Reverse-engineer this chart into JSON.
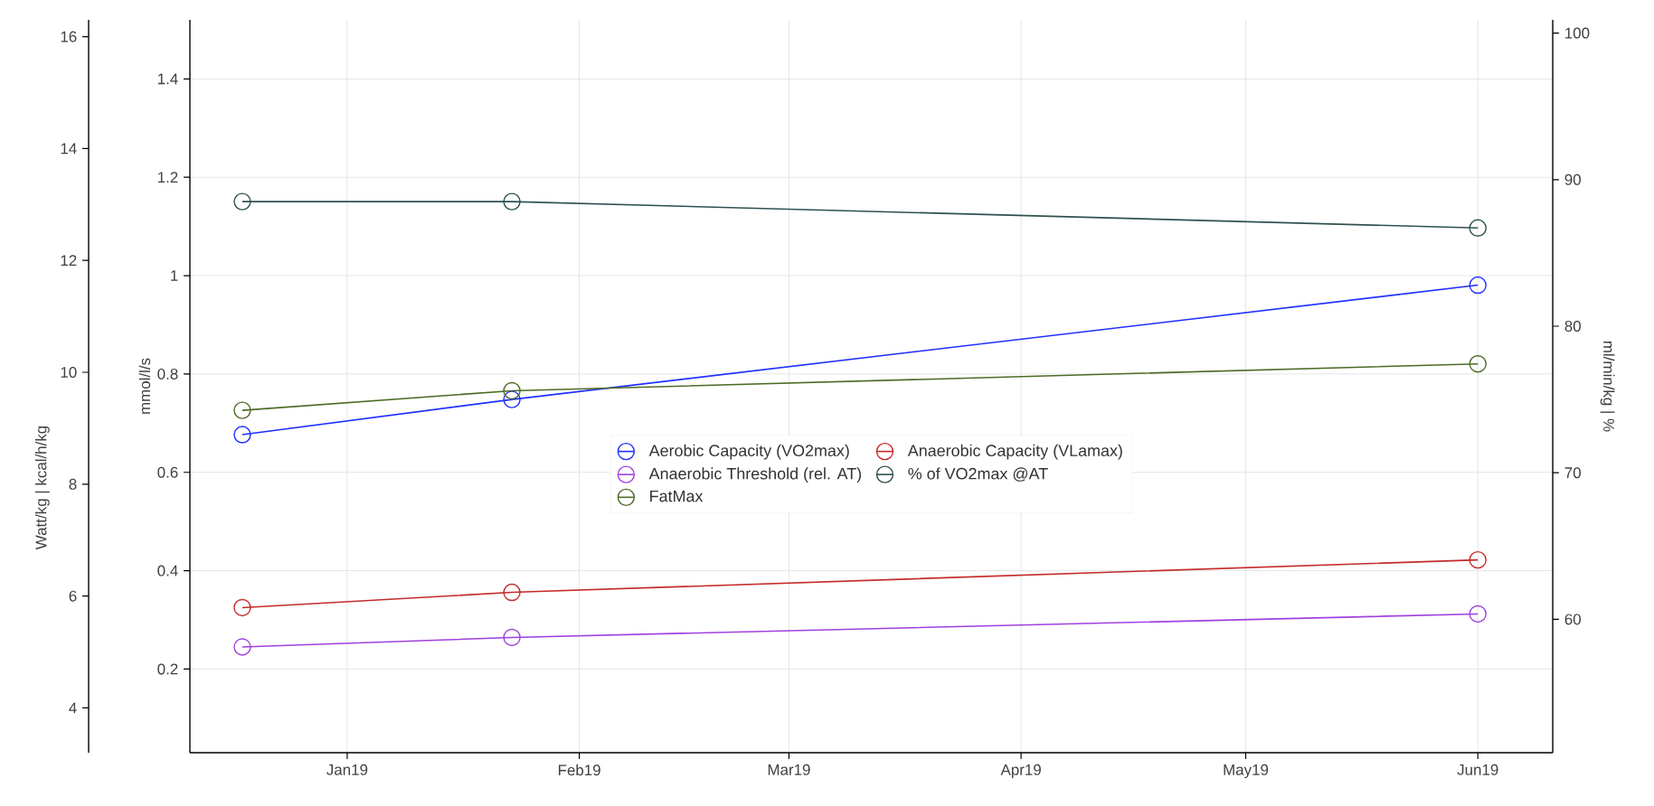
{
  "chart_data": {
    "type": "line",
    "x": [
      "2018-12-18",
      "2019-01-23",
      "2019-06-01"
    ],
    "xlim": [
      "2018-12-11",
      "2019-06-11"
    ],
    "xticks": [
      {
        "value": "2019-01-01",
        "label": "Jan19"
      },
      {
        "value": "2019-02-01",
        "label": "Feb19"
      },
      {
        "value": "2019-03-01",
        "label": "Mar19"
      },
      {
        "value": "2019-04-01",
        "label": "Apr19"
      },
      {
        "value": "2019-05-01",
        "label": "May19"
      },
      {
        "value": "2019-06-01",
        "label": "Jun19"
      }
    ],
    "ylabel": "mmol/l/s",
    "ylim": [
      0.03,
      1.52
    ],
    "yticks": [
      0.2,
      0.4,
      0.6,
      0.8,
      1,
      1.2,
      1.4
    ],
    "y2label": "ml/min/kg | %",
    "y2lim": [
      50.9,
      100.9
    ],
    "y2ticks": [
      60,
      70,
      80,
      90,
      100
    ],
    "y3label": "Watt/kg | kcal/h/kg",
    "y3lim": [
      3.2,
      16.3
    ],
    "y3ticks": [
      4,
      6,
      8,
      10,
      12,
      14,
      16
    ],
    "series": [
      {
        "name": "Aerobic Capacity (VO2max)",
        "color": "#1f2fff",
        "axis": "y2",
        "values": [
          72.6,
          75.0,
          82.8
        ]
      },
      {
        "name": "Anaerobic Capacity (VLamax)",
        "color": "#c42a2a",
        "axis": "y",
        "values": [
          0.325,
          0.356,
          0.422
        ]
      },
      {
        "name": "Anaerobic Threshold (rel. AT)",
        "color": "#a040e0",
        "axis": "y3",
        "values": [
          5.09,
          5.26,
          5.68
        ]
      },
      {
        "name": "% of VO2max @AT",
        "color": "#2f5050",
        "axis": "y2",
        "values": [
          88.5,
          88.5,
          86.7
        ]
      },
      {
        "name": "FatMax",
        "color": "#4d6b26",
        "axis": "y3",
        "values": [
          9.32,
          9.67,
          10.15
        ]
      }
    ],
    "grid": true,
    "legend": "center",
    "marker": "circle",
    "line_style": "solid"
  }
}
